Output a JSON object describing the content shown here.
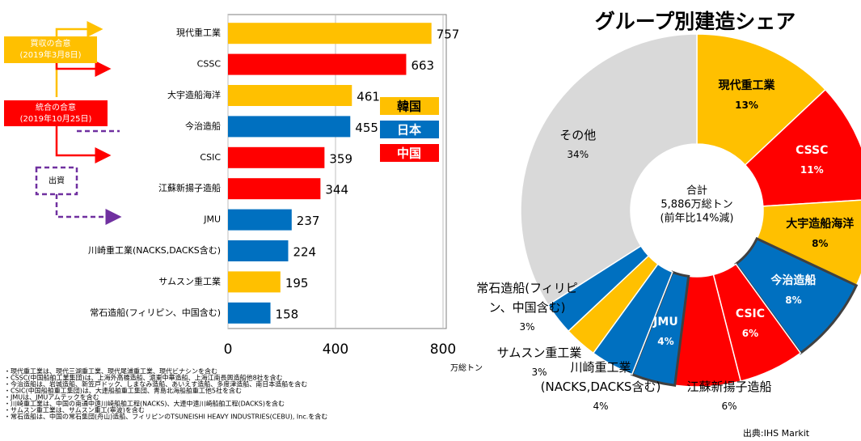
{
  "chart_data": [
    {
      "type": "bar",
      "categories": [
        "現代重工業",
        "CSSC",
        "大宇造船海洋",
        "今治造船",
        "CSIC",
        "江蘇新揚子造船",
        "JMU",
        "川崎重工業(NACKS,DACKS含む)",
        "サムスン重工業",
        "常石造船(フィリピン、中国含む)"
      ],
      "values": [
        757,
        663,
        461,
        455,
        359,
        344,
        237,
        224,
        195,
        158
      ],
      "colors": [
        "#ffc000",
        "#ff0000",
        "#ffc000",
        "#0070c0",
        "#ff0000",
        "#ff0000",
        "#0070c0",
        "#0070c0",
        "#ffc000",
        "#0070c0"
      ],
      "xlim": [
        0,
        800
      ],
      "xticks": [
        0,
        400,
        800
      ],
      "xlabel": "万総トン",
      "grid": true,
      "legend": [
        {
          "name": "韓国",
          "color": "#ffc000"
        },
        {
          "name": "日本",
          "color": "#0070c0"
        },
        {
          "name": "中国",
          "color": "#ff0000"
        }
      ],
      "annotations": [
        {
          "text": "買収の合意",
          "date": "(2019年3月8日)",
          "color": "#ffc000"
        },
        {
          "text": "統合の合意",
          "date": "(2019年10月25日)",
          "color": "#ff0000"
        },
        {
          "text": "出資",
          "color": "#7030a0"
        }
      ],
      "notes": [
        "・現代重工業は、現代三湖重工業、現代尾浦重工業、現代ビナシンを含む",
        "・CSSC(中国船舶工業集団)は、上海外高橋造船、滬東中華造船、上海江南長興造船他8社を含む",
        "・今治造船は、岩城造船、新笠戸ドック、しまなみ造船、あいえす造船、多度津造船、南日本造船を含む",
        "・CSIC(中国船舶重工集団)は、大連船舶重工集団、青島北海船舶重工他5社を含む",
        "・JMUは、JMUアムテックを含む",
        "・川崎重工業は、中国の南通中遠川崎船舶工程(NACKS)、大連中遠川崎船舶工程(DACKS)を含む",
        "・サムスン重工業は、サムスン重工(寧波)を含む",
        "・常石造船は、中国の常石集団(舟山)造船、フィリピンのTSUNEISHI HEAVY INDUSTRIES(CEBU), Inc.を含む"
      ]
    },
    {
      "type": "pie",
      "title": "グループ別建造シェア",
      "categories": [
        "現代重工業",
        "CSSC",
        "大宇造船海洋",
        "今治造船",
        "CSIC",
        "江蘇新揚子造船",
        "JMU",
        "川崎重工業(NACKS,DACKS含む)",
        "サムスン重工業",
        "常石造船(フィリピン、中国含む)",
        "その他"
      ],
      "values": [
        13,
        11,
        8,
        8,
        6,
        6,
        4,
        4,
        3,
        3,
        34
      ],
      "value_labels": [
        "13%",
        "11%",
        "8%",
        "8%",
        "6%",
        "6%",
        "4%",
        "4%",
        "3%",
        "3%",
        "34%"
      ],
      "colors": [
        "#ffc000",
        "#ff0000",
        "#ffc000",
        "#0070c0",
        "#ff0000",
        "#ff0000",
        "#0070c0",
        "#0070c0",
        "#ffc000",
        "#0070c0",
        "#d9d9d9"
      ],
      "center_text": [
        "合計",
        "5,886万総トン",
        "(前年比14%減)"
      ],
      "source": "出典:IHS Markit"
    }
  ]
}
